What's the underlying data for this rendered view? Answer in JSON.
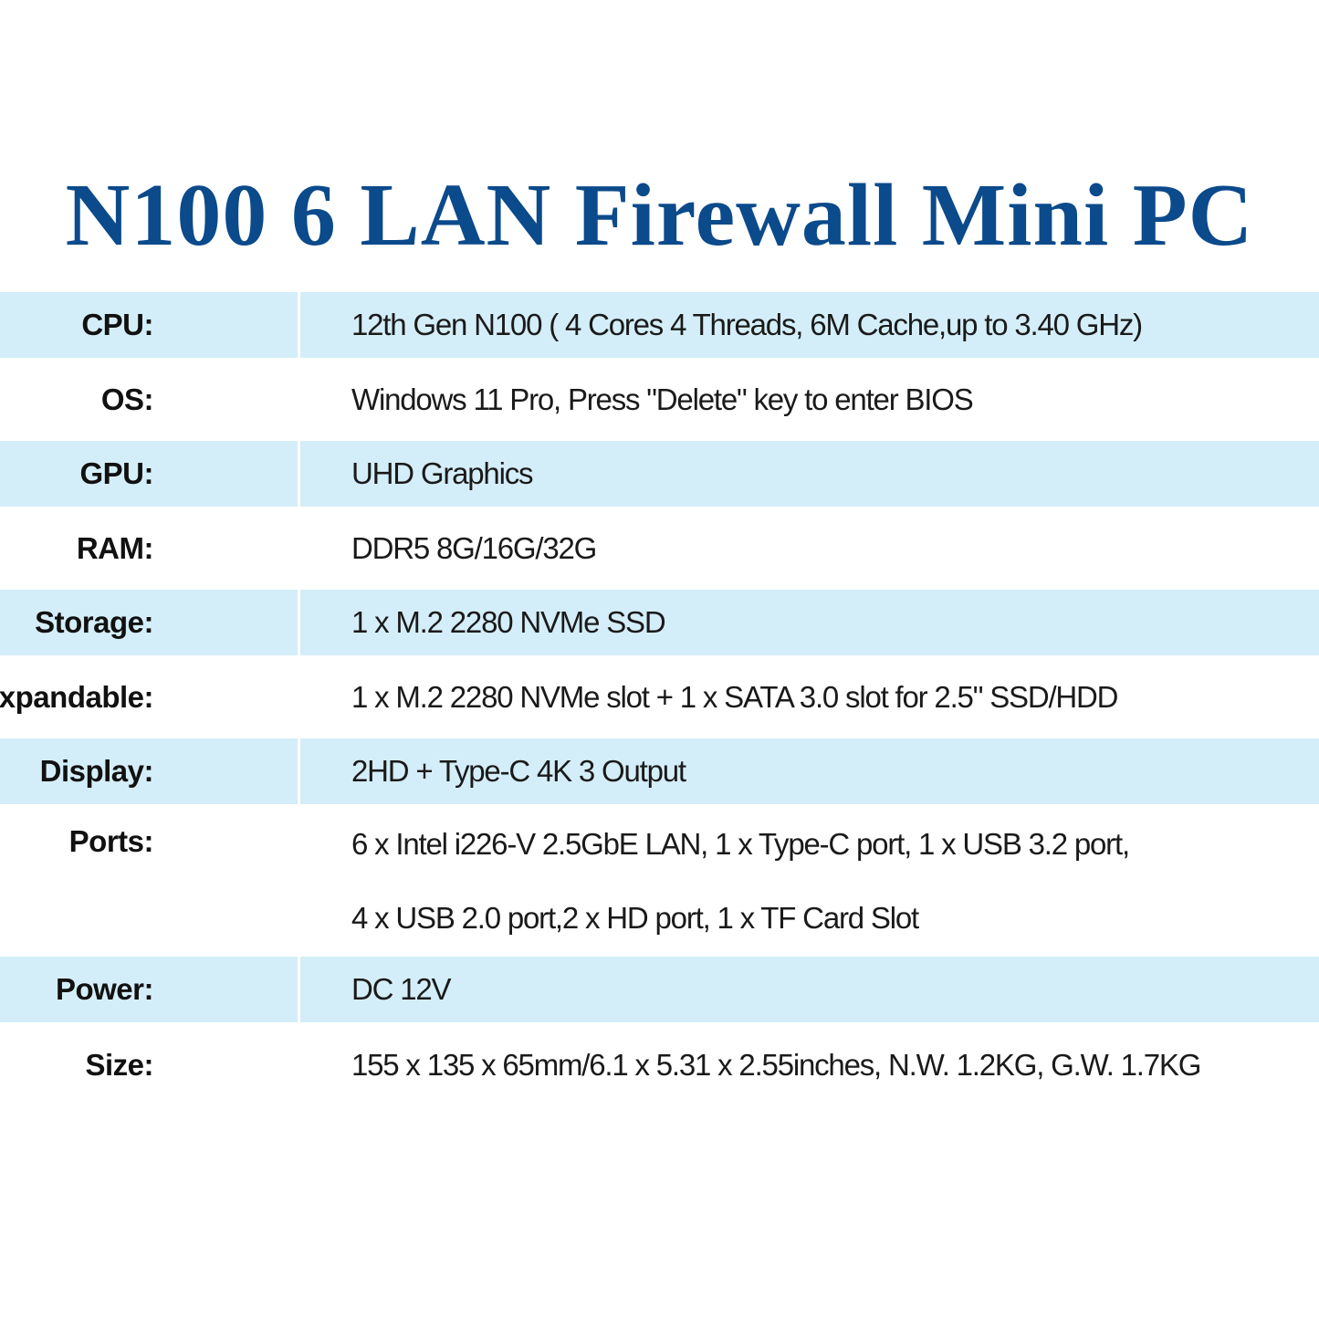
{
  "title": "N100 6 LAN Firewall Mini PC",
  "colors": {
    "title": "#0b4a8b",
    "row_highlight": "#d4eef9"
  },
  "specs": [
    {
      "label": "CPU:",
      "lines": [
        "12th Gen N100 ( 4 Cores 4 Threads, 6M Cache,up to 3.40 GHz)"
      ]
    },
    {
      "label": "OS:",
      "lines": [
        "Windows 11 Pro, Press \"Delete\" key to enter BIOS"
      ]
    },
    {
      "label": "GPU:",
      "lines": [
        "UHD Graphics"
      ]
    },
    {
      "label": "RAM:",
      "lines": [
        "DDR5 8G/16G/32G"
      ]
    },
    {
      "label": "Storage:",
      "lines": [
        "1 x M.2 2280 NVMe SSD"
      ]
    },
    {
      "label": "Expandable:",
      "lines": [
        "1 x M.2 2280 NVMe slot + 1 x SATA 3.0 slot for 2.5\" SSD/HDD"
      ]
    },
    {
      "label": "Display:",
      "lines": [
        "2HD + Type-C 4K 3 Output"
      ]
    },
    {
      "label": "Ports:",
      "lines": [
        "6 x Intel  i226-V 2.5GbE LAN, 1 x Type-C port, 1 x USB 3.2 port,",
        "4 x USB 2.0 port,2 x HD port, 1 x TF Card Slot"
      ]
    },
    {
      "label": "Power:",
      "lines": [
        "DC 12V"
      ]
    },
    {
      "label": "Size:",
      "lines": [
        "155 x 135 x 65mm/6.1 x 5.31 x 2.55inches, N.W. 1.2KG, G.W. 1.7KG"
      ]
    }
  ]
}
